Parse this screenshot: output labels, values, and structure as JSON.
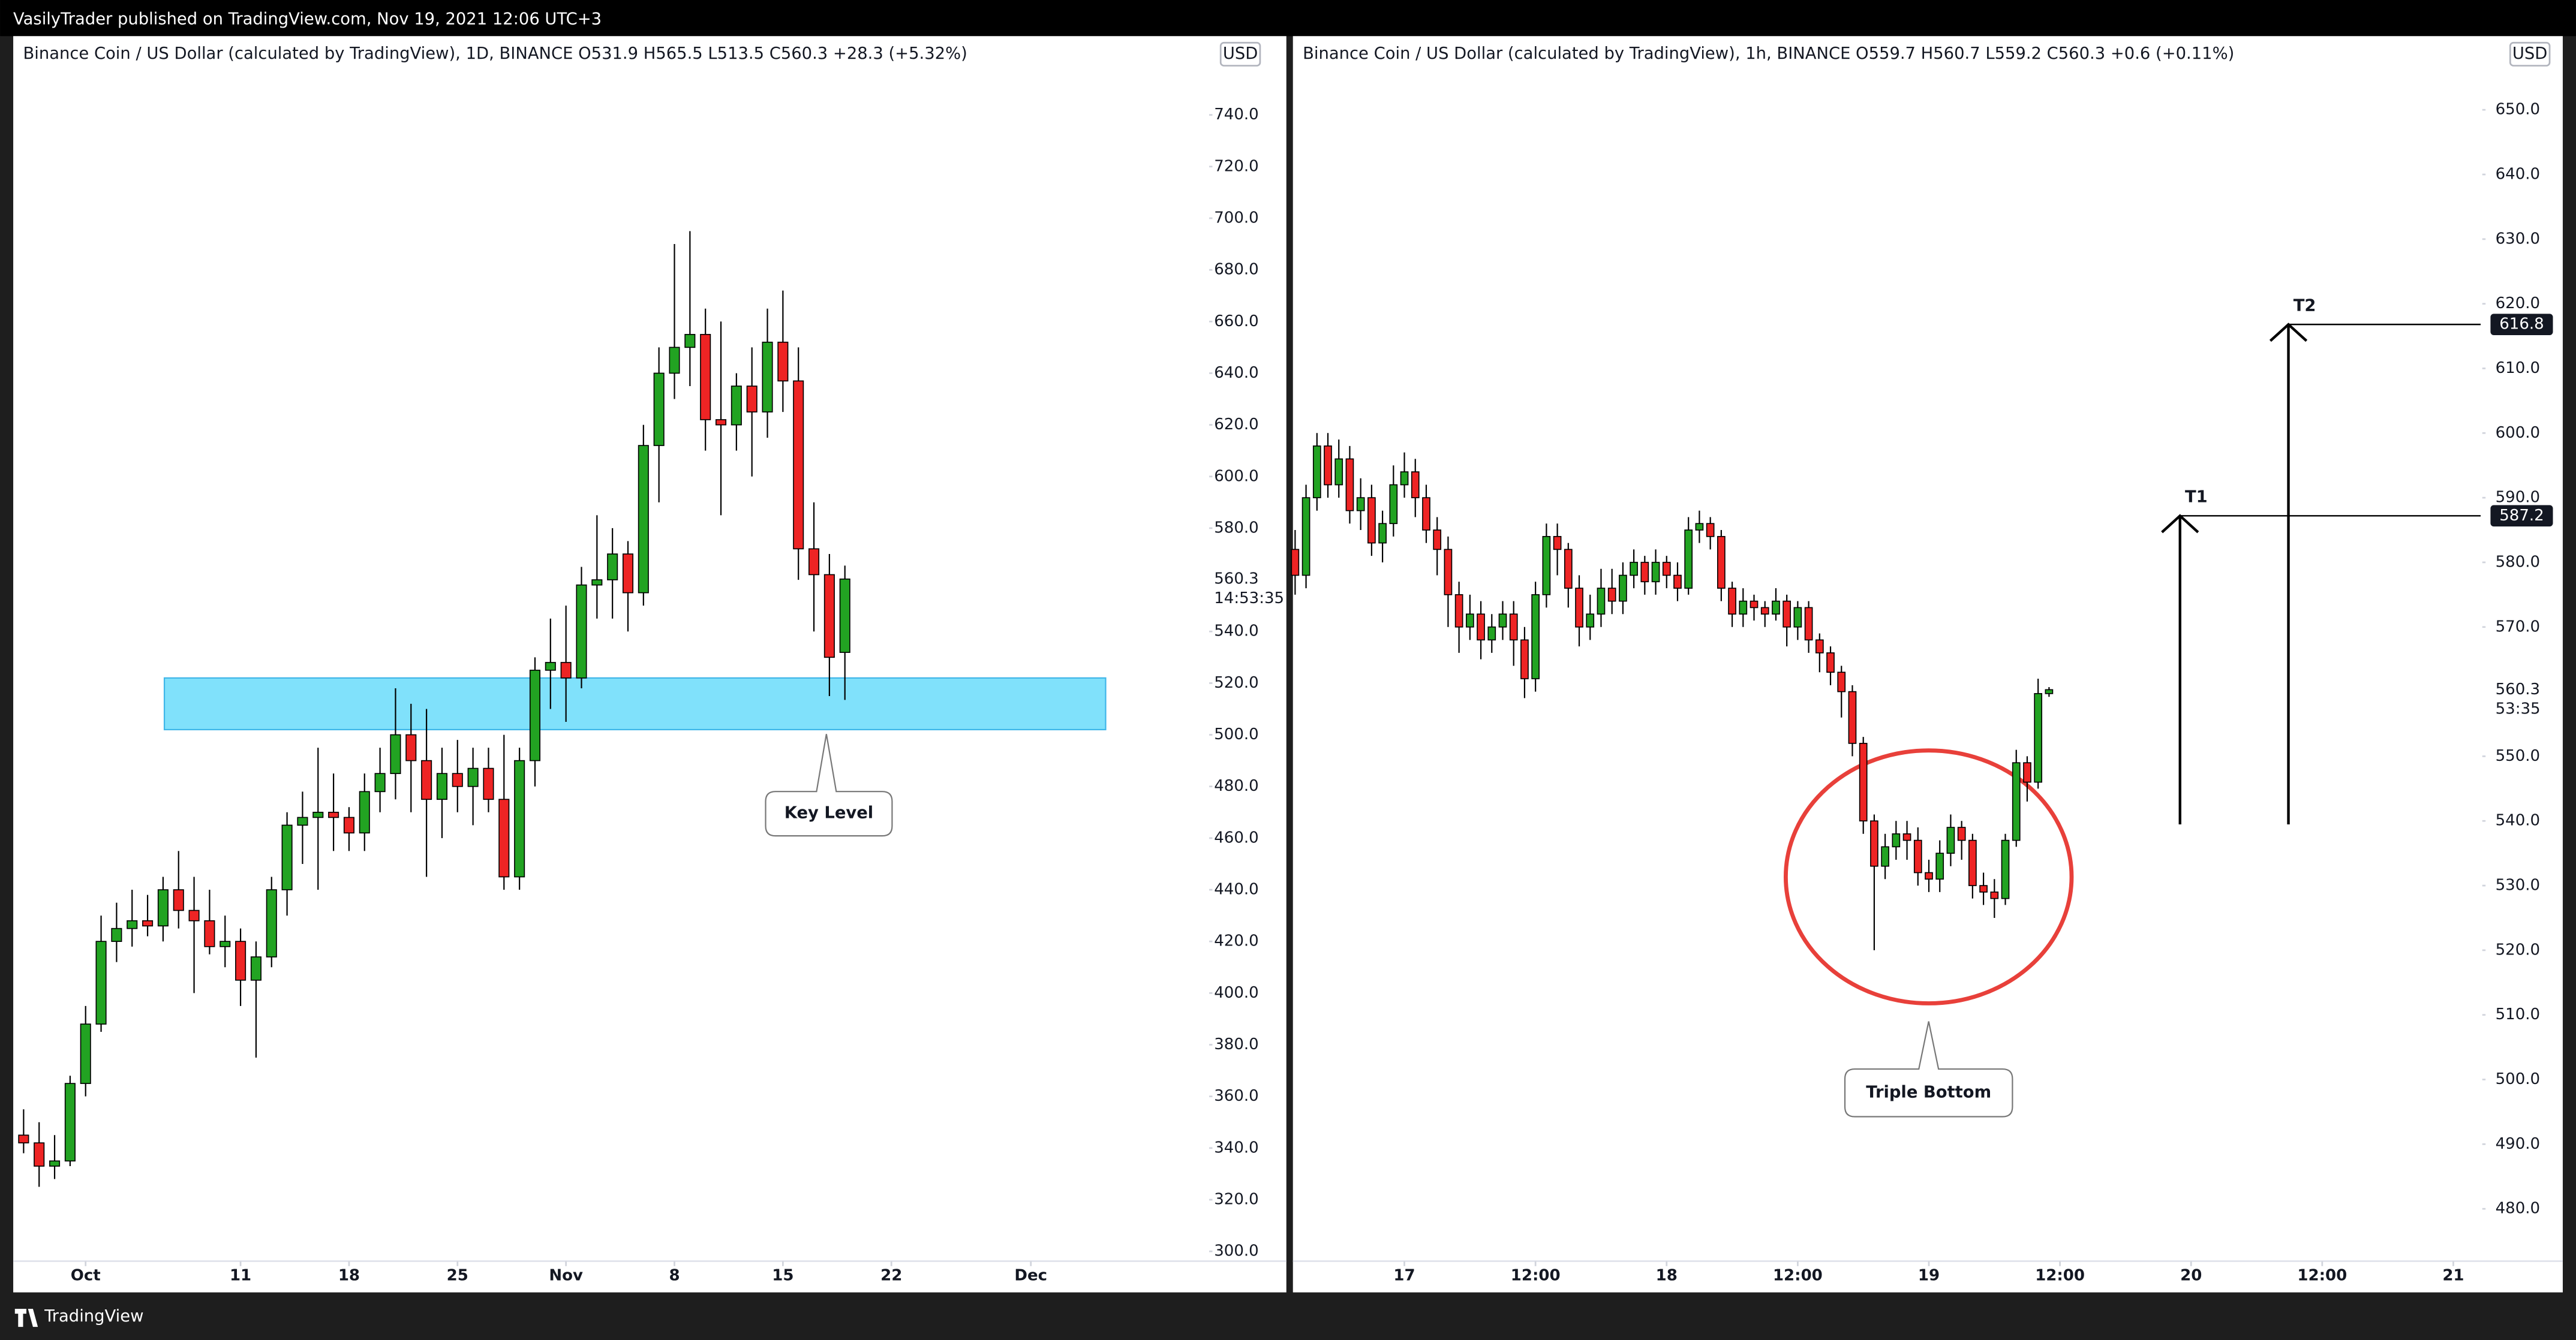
{
  "header": {
    "text": "VasilyTrader published on TradingView.com, Nov 19, 2021 12:06 UTC+3"
  },
  "footer": {
    "brand": "TradingView"
  },
  "chart_data": [
    {
      "type": "candlestick",
      "title": "Binance Coin / US Dollar (calculated by TradingView), 1D, BINANCE  O531.9  H565.5  L513.5  C560.3  +28.3 (+5.32%)",
      "currency": "USD",
      "up_color": "#22a322",
      "down_color": "#ee2424",
      "xlim": [
        -4.67,
        72.4
      ],
      "xticks": [
        {
          "value": 0,
          "label": "Oct"
        },
        {
          "value": 10,
          "label": "11"
        },
        {
          "value": 17,
          "label": "18"
        },
        {
          "value": 24,
          "label": "25"
        },
        {
          "value": 31,
          "label": "Nov"
        },
        {
          "value": 38,
          "label": "8"
        },
        {
          "value": 45,
          "label": "15"
        },
        {
          "value": 52,
          "label": "22"
        },
        {
          "value": 61,
          "label": "Dec"
        }
      ],
      "ylim": [
        296.2,
        770.5
      ],
      "yticks": [
        {
          "value": 300,
          "label": "300.0"
        },
        {
          "value": 320,
          "label": "320.0"
        },
        {
          "value": 340,
          "label": "340.0"
        },
        {
          "value": 360,
          "label": "360.0"
        },
        {
          "value": 380,
          "label": "380.0"
        },
        {
          "value": 400,
          "label": "400.0"
        },
        {
          "value": 420,
          "label": "420.0"
        },
        {
          "value": 440,
          "label": "440.0"
        },
        {
          "value": 460,
          "label": "460.0"
        },
        {
          "value": 480,
          "label": "480.0"
        },
        {
          "value": 500,
          "label": "500.0"
        },
        {
          "value": 520,
          "label": "520.0"
        },
        {
          "value": 540,
          "label": "540.0"
        },
        {
          "value": 580,
          "label": "580.0"
        },
        {
          "value": 600,
          "label": "600.0"
        },
        {
          "value": 620,
          "label": "620.0"
        },
        {
          "value": 640,
          "label": "640.0"
        },
        {
          "value": 660,
          "label": "660.0"
        },
        {
          "value": 680,
          "label": "680.0"
        },
        {
          "value": 700,
          "label": "700.0"
        },
        {
          "value": 720,
          "label": "720.0"
        },
        {
          "value": 740,
          "label": "740.0"
        }
      ],
      "last_price": 560.3,
      "countdown": "14:53:35",
      "zone": {
        "range": [
          502,
          522
        ],
        "color": "#80e1fb",
        "label": "Key Level"
      },
      "x": [
        -4,
        -3,
        -2,
        -1,
        0,
        1,
        2,
        3,
        4,
        5,
        6,
        7,
        8,
        9,
        10,
        11,
        12,
        13,
        14,
        15,
        16,
        17,
        18,
        19,
        20,
        21,
        22,
        23,
        24,
        25,
        26,
        27,
        28,
        29,
        30,
        31,
        32,
        33,
        34,
        35,
        36,
        37,
        38,
        39,
        40,
        41,
        42,
        43,
        44,
        45,
        46,
        47,
        48,
        49
      ],
      "open": [
        345,
        342,
        333,
        335,
        365,
        388,
        420,
        425,
        428,
        426,
        440,
        432,
        428,
        418,
        420,
        405,
        414,
        440,
        465,
        468,
        470,
        468,
        462,
        478,
        485,
        500,
        490,
        475,
        485,
        480,
        487,
        475,
        445,
        490,
        525,
        528,
        522,
        558,
        560,
        570,
        555,
        612,
        640,
        650,
        655,
        622,
        620,
        635,
        625,
        652,
        637,
        572,
        562,
        531.9
      ],
      "high": [
        355,
        350,
        345,
        368,
        395,
        430,
        435,
        440,
        438,
        445,
        455,
        445,
        440,
        430,
        425,
        420,
        445,
        470,
        478,
        495,
        485,
        472,
        485,
        495,
        518,
        512,
        510,
        495,
        498,
        495,
        495,
        500,
        495,
        530,
        545,
        550,
        565,
        585,
        580,
        575,
        620,
        650,
        690,
        695,
        665,
        660,
        640,
        650,
        665,
        672,
        650,
        590,
        570,
        565.5
      ],
      "low": [
        338,
        325,
        328,
        333,
        360,
        385,
        412,
        418,
        422,
        420,
        425,
        400,
        415,
        410,
        395,
        375,
        410,
        430,
        450,
        440,
        455,
        455,
        455,
        470,
        475,
        470,
        445,
        460,
        470,
        465,
        470,
        440,
        440,
        480,
        510,
        505,
        518,
        545,
        545,
        540,
        550,
        590,
        630,
        635,
        610,
        585,
        610,
        600,
        615,
        625,
        560,
        540,
        515,
        513.5
      ],
      "close": [
        342,
        333,
        335,
        365,
        388,
        420,
        425,
        428,
        426,
        440,
        432,
        428,
        418,
        420,
        405,
        414,
        440,
        465,
        468,
        470,
        468,
        462,
        478,
        485,
        500,
        490,
        475,
        485,
        480,
        487,
        475,
        445,
        490,
        525,
        528,
        522,
        558,
        560,
        570,
        555,
        612,
        640,
        650,
        655,
        622,
        620,
        635,
        625,
        652,
        637,
        572,
        562,
        530,
        560.3
      ]
    },
    {
      "type": "candlestick",
      "title": "Binance Coin / US Dollar (calculated by TradingView), 1h, BINANCE  O559.7  H560.7  L559.2  C560.3  +0.6 (+0.11%)",
      "currency": "USD",
      "up_color": "#22a322",
      "down_color": "#ee2424",
      "xlim": [
        -10.2,
        98.5
      ],
      "xticks": [
        {
          "value": 0,
          "label": "17"
        },
        {
          "value": 12,
          "label": "12:00"
        },
        {
          "value": 24,
          "label": "18"
        },
        {
          "value": 36,
          "label": "12:00"
        },
        {
          "value": 48,
          "label": "19"
        },
        {
          "value": 60,
          "label": "12:00"
        },
        {
          "value": 72,
          "label": "20"
        },
        {
          "value": 84,
          "label": "12:00"
        },
        {
          "value": 96,
          "label": "21"
        }
      ],
      "ylim": [
        471.9,
        661.4
      ],
      "yticks": [
        {
          "value": 480,
          "label": "480.0"
        },
        {
          "value": 490,
          "label": "490.0"
        },
        {
          "value": 500,
          "label": "500.0"
        },
        {
          "value": 510,
          "label": "510.0"
        },
        {
          "value": 520,
          "label": "520.0"
        },
        {
          "value": 530,
          "label": "530.0"
        },
        {
          "value": 540,
          "label": "540.0"
        },
        {
          "value": 550,
          "label": "550.0"
        },
        {
          "value": 570,
          "label": "570.0"
        },
        {
          "value": 580,
          "label": "580.0"
        },
        {
          "value": 590,
          "label": "590.0"
        },
        {
          "value": 600,
          "label": "600.0"
        },
        {
          "value": 610,
          "label": "610.0"
        },
        {
          "value": 620,
          "label": "620.0"
        },
        {
          "value": 630,
          "label": "630.0"
        },
        {
          "value": 640,
          "label": "640.0"
        },
        {
          "value": 650,
          "label": "650.0"
        }
      ],
      "last_price": 560.3,
      "countdown": "53:35",
      "pattern": {
        "label": "Triple Bottom",
        "color": "#e8403a"
      },
      "targets": [
        {
          "label": "T1",
          "value": 587.2
        },
        {
          "label": "T2",
          "value": 616.8
        }
      ],
      "x": [
        -10,
        -9,
        -8,
        -7,
        -6,
        -5,
        -4,
        -3,
        -2,
        -1,
        0,
        1,
        2,
        3,
        4,
        5,
        6,
        7,
        8,
        9,
        10,
        11,
        12,
        13,
        14,
        15,
        16,
        17,
        18,
        19,
        20,
        21,
        22,
        23,
        24,
        25,
        26,
        27,
        28,
        29,
        30,
        31,
        32,
        33,
        34,
        35,
        36,
        37,
        38,
        39,
        40,
        41,
        42,
        43,
        44,
        45,
        46,
        47,
        48,
        49,
        50,
        51,
        52,
        53,
        54,
        55,
        56,
        57,
        58,
        59
      ],
      "open": [
        582,
        578,
        590,
        598,
        592,
        596,
        588,
        590,
        583,
        586,
        592,
        594,
        590,
        585,
        582,
        575,
        570,
        572,
        568,
        570,
        572,
        568,
        562,
        575,
        584,
        582,
        576,
        570,
        572,
        576,
        574,
        578,
        580,
        577,
        580,
        578,
        576,
        585,
        586,
        584,
        576,
        572,
        574,
        573,
        572,
        574,
        570,
        573,
        568,
        566,
        563,
        560,
        552,
        540,
        533,
        536,
        538,
        537,
        532,
        531,
        535,
        539,
        537,
        530,
        529,
        528,
        537,
        549,
        546,
        559.7
      ],
      "high": [
        585,
        592,
        600,
        600,
        599,
        598,
        593,
        592,
        588,
        595,
        597,
        596,
        592,
        587,
        584,
        577,
        575,
        574,
        572,
        574,
        574,
        570,
        577,
        586,
        586,
        583,
        578,
        575,
        579,
        579,
        580,
        582,
        581,
        582,
        581,
        580,
        587,
        588,
        587,
        585,
        577,
        576,
        575,
        574,
        576,
        575,
        574,
        574,
        569,
        567,
        564,
        561,
        553,
        541,
        538,
        540,
        540,
        539,
        534,
        537,
        541,
        540,
        538,
        532,
        531,
        538,
        551,
        550,
        562,
        560.7
      ],
      "low": [
        575,
        576,
        588,
        590,
        590,
        586,
        585,
        581,
        580,
        584,
        590,
        587,
        583,
        578,
        570,
        566,
        568,
        565,
        566,
        568,
        564,
        559,
        560,
        573,
        578,
        573,
        567,
        568,
        570,
        572,
        572,
        576,
        575,
        575,
        576,
        574,
        575,
        583,
        582,
        574,
        570,
        570,
        571,
        570,
        571,
        567,
        568,
        566,
        563,
        561,
        556,
        550,
        538,
        520,
        531,
        534,
        534,
        530,
        529,
        529,
        533,
        534,
        528,
        527,
        525,
        527,
        536,
        543,
        545,
        559.2
      ],
      "close": [
        578,
        590,
        598,
        592,
        596,
        588,
        590,
        583,
        586,
        592,
        594,
        590,
        585,
        582,
        575,
        570,
        572,
        568,
        570,
        572,
        568,
        562,
        575,
        584,
        582,
        576,
        570,
        572,
        576,
        574,
        578,
        580,
        577,
        580,
        578,
        576,
        585,
        586,
        584,
        576,
        572,
        574,
        573,
        572,
        574,
        570,
        573,
        568,
        566,
        563,
        560,
        552,
        540,
        533,
        536,
        538,
        537,
        532,
        531,
        535,
        539,
        537,
        530,
        529,
        528,
        537,
        549,
        546,
        559.7,
        560.3
      ]
    }
  ]
}
